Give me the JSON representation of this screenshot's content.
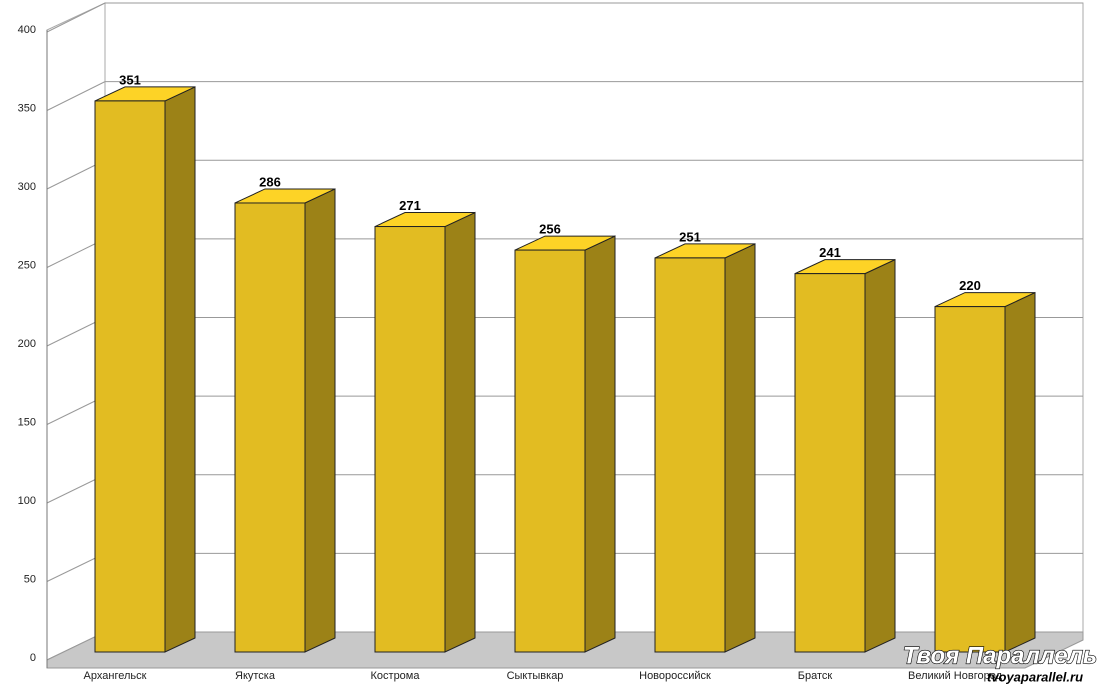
{
  "chart_data": {
    "type": "bar3d",
    "categories": [
      "Архангельск",
      "Якутска",
      "Кострома",
      "Сыктывкар",
      "Новороссийск",
      "Братск",
      "Великий Новгород"
    ],
    "values": [
      351,
      286,
      271,
      256,
      251,
      241,
      220
    ],
    "color": "#e2bc22",
    "ylim": [
      0,
      400
    ],
    "yticks": [
      0,
      50,
      100,
      150,
      200,
      250,
      300,
      350,
      400
    ],
    "grid": true
  },
  "watermark": {
    "title": "Твоя Параллель",
    "url": "tvoyaparallel.ru"
  }
}
